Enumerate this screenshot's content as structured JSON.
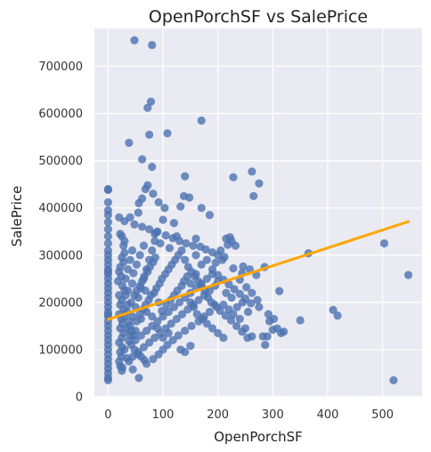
{
  "chart_data": {
    "type": "scatter",
    "title": "OpenPorchSF vs SalePrice",
    "xlabel": "OpenPorchSF",
    "ylabel": "SalePrice",
    "xlim": [
      -25,
      572
    ],
    "ylim": [
      0,
      780000
    ],
    "xticks": [
      0,
      100,
      200,
      300,
      400,
      500
    ],
    "yticks": [
      0,
      100000,
      200000,
      300000,
      400000,
      500000,
      600000,
      700000
    ],
    "grid": true,
    "point_color": "#4c72b0",
    "line_color": "#ffa500",
    "background_color": "#eaeaf2",
    "regression_line": {
      "x": [
        0,
        547
      ],
      "y": [
        164000,
        371000
      ]
    },
    "points": [
      [
        0,
        440000
      ],
      [
        0,
        438000
      ],
      [
        0,
        395000
      ],
      [
        0,
        385000
      ],
      [
        0,
        370000
      ],
      [
        0,
        355000
      ],
      [
        0,
        340000
      ],
      [
        0,
        325000
      ],
      [
        0,
        310000
      ],
      [
        0,
        300000
      ],
      [
        0,
        290000
      ],
      [
        0,
        280000
      ],
      [
        0,
        270000
      ],
      [
        0,
        260000
      ],
      [
        0,
        250000
      ],
      [
        0,
        240000
      ],
      [
        0,
        230000
      ],
      [
        0,
        220000
      ],
      [
        0,
        210000
      ],
      [
        0,
        200000
      ],
      [
        0,
        190000
      ],
      [
        0,
        180000
      ],
      [
        0,
        170000
      ],
      [
        0,
        160000
      ],
      [
        0,
        150000
      ],
      [
        0,
        140000
      ],
      [
        0,
        130000
      ],
      [
        0,
        120000
      ],
      [
        0,
        110000
      ],
      [
        0,
        100000
      ],
      [
        0,
        90000
      ],
      [
        0,
        80000
      ],
      [
        0,
        70000
      ],
      [
        0,
        60000
      ],
      [
        0,
        50000
      ],
      [
        0,
        40000
      ],
      [
        0,
        35000
      ],
      [
        0,
        412000
      ],
      [
        0,
        265000
      ],
      [
        0,
        175000
      ],
      [
        20,
        380000
      ],
      [
        22,
        345000
      ],
      [
        25,
        340000
      ],
      [
        30,
        330000
      ],
      [
        30,
        305000
      ],
      [
        25,
        295000
      ],
      [
        28,
        285000
      ],
      [
        22,
        275000
      ],
      [
        20,
        265000
      ],
      [
        24,
        255000
      ],
      [
        18,
        245000
      ],
      [
        26,
        235000
      ],
      [
        30,
        225000
      ],
      [
        20,
        215000
      ],
      [
        25,
        205000
      ],
      [
        22,
        195000
      ],
      [
        28,
        185000
      ],
      [
        20,
        175000
      ],
      [
        24,
        165000
      ],
      [
        26,
        155000
      ],
      [
        22,
        145000
      ],
      [
        28,
        135000
      ],
      [
        25,
        125000
      ],
      [
        20,
        115000
      ],
      [
        26,
        105000
      ],
      [
        22,
        95000
      ],
      [
        24,
        85000
      ],
      [
        20,
        75000
      ],
      [
        22,
        65000
      ],
      [
        25,
        55000
      ],
      [
        48,
        755000
      ],
      [
        80,
        745000
      ],
      [
        78,
        625000
      ],
      [
        72,
        612000
      ],
      [
        170,
        585000
      ],
      [
        108,
        558000
      ],
      [
        75,
        555000
      ],
      [
        38,
        538000
      ],
      [
        62,
        503000
      ],
      [
        80,
        487000
      ],
      [
        140,
        467000
      ],
      [
        228,
        465000
      ],
      [
        262,
        477000
      ],
      [
        275,
        452000
      ],
      [
        265,
        425000
      ],
      [
        72,
        448000
      ],
      [
        68,
        440000
      ],
      [
        82,
        430000
      ],
      [
        62,
        420000
      ],
      [
        56,
        410000
      ],
      [
        92,
        412000
      ],
      [
        138,
        425000
      ],
      [
        148,
        422000
      ],
      [
        103,
        400000
      ],
      [
        132,
        403000
      ],
      [
        170,
        400000
      ],
      [
        185,
        385000
      ],
      [
        100,
        375000
      ],
      [
        120,
        368000
      ],
      [
        55,
        390000
      ],
      [
        40,
        380000
      ],
      [
        30,
        372000
      ],
      [
        48,
        365000
      ],
      [
        62,
        360000
      ],
      [
        75,
        355000
      ],
      [
        88,
        348000
      ],
      [
        105,
        342000
      ],
      [
        118,
        336000
      ],
      [
        130,
        330000
      ],
      [
        142,
        325000
      ],
      [
        155,
        320000
      ],
      [
        168,
        318000
      ],
      [
        178,
        312000
      ],
      [
        190,
        306000
      ],
      [
        200,
        300000
      ],
      [
        212,
        296000
      ],
      [
        222,
        338000
      ],
      [
        218,
        322000
      ],
      [
        208,
        290000
      ],
      [
        196,
        284000
      ],
      [
        232,
        320000
      ],
      [
        228,
        272000
      ],
      [
        244,
        262000
      ],
      [
        246,
        276000
      ],
      [
        258,
        270000
      ],
      [
        270,
        258000
      ],
      [
        285,
        275000
      ],
      [
        240,
        248000
      ],
      [
        252,
        232000
      ],
      [
        262,
        220000
      ],
      [
        272,
        205000
      ],
      [
        292,
        175000
      ],
      [
        294,
        160000
      ],
      [
        302,
        165000
      ],
      [
        308,
        145000
      ],
      [
        315,
        135000
      ],
      [
        282,
        128000
      ],
      [
        286,
        110000
      ],
      [
        262,
        128000
      ],
      [
        250,
        145000
      ],
      [
        240,
        165000
      ],
      [
        228,
        175000
      ],
      [
        220,
        185000
      ],
      [
        210,
        195000
      ],
      [
        198,
        190000
      ],
      [
        185,
        180000
      ],
      [
        175,
        170000
      ],
      [
        165,
        160000
      ],
      [
        152,
        150000
      ],
      [
        140,
        140000
      ],
      [
        128,
        130000
      ],
      [
        118,
        120000
      ],
      [
        108,
        110000
      ],
      [
        100,
        100000
      ],
      [
        92,
        90000
      ],
      [
        82,
        80000
      ],
      [
        70,
        70000
      ],
      [
        56,
        40000
      ],
      [
        45,
        58000
      ],
      [
        38,
        118000
      ],
      [
        50,
        120000
      ],
      [
        60,
        130000
      ],
      [
        70,
        140000
      ],
      [
        80,
        150000
      ],
      [
        90,
        160000
      ],
      [
        100,
        170000
      ],
      [
        110,
        180000
      ],
      [
        120,
        190000
      ],
      [
        130,
        200000
      ],
      [
        140,
        210000
      ],
      [
        150,
        220000
      ],
      [
        160,
        230000
      ],
      [
        170,
        240000
      ],
      [
        180,
        250000
      ],
      [
        190,
        260000
      ],
      [
        200,
        245000
      ],
      [
        195,
        235000
      ],
      [
        185,
        225000
      ],
      [
        175,
        215000
      ],
      [
        165,
        205000
      ],
      [
        155,
        195000
      ],
      [
        145,
        185000
      ],
      [
        135,
        175000
      ],
      [
        125,
        165000
      ],
      [
        115,
        155000
      ],
      [
        105,
        145000
      ],
      [
        95,
        135000
      ],
      [
        85,
        125000
      ],
      [
        75,
        115000
      ],
      [
        65,
        105000
      ],
      [
        55,
        95000
      ],
      [
        45,
        85000
      ],
      [
        40,
        150000
      ],
      [
        45,
        170000
      ],
      [
        50,
        190000
      ],
      [
        55,
        210000
      ],
      [
        60,
        230000
      ],
      [
        65,
        250000
      ],
      [
        70,
        270000
      ],
      [
        75,
        290000
      ],
      [
        80,
        310000
      ],
      [
        85,
        330000
      ],
      [
        90,
        350000
      ],
      [
        42,
        200000
      ],
      [
        48,
        215000
      ],
      [
        52,
        225000
      ],
      [
        58,
        235000
      ],
      [
        62,
        245000
      ],
      [
        66,
        255000
      ],
      [
        72,
        265000
      ],
      [
        76,
        275000
      ],
      [
        82,
        285000
      ],
      [
        86,
        295000
      ],
      [
        35,
        180000
      ],
      [
        38,
        160000
      ],
      [
        42,
        140000
      ],
      [
        46,
        130000
      ],
      [
        52,
        160000
      ],
      [
        58,
        175000
      ],
      [
        64,
        185000
      ],
      [
        68,
        195000
      ],
      [
        74,
        205000
      ],
      [
        78,
        215000
      ],
      [
        84,
        220000
      ],
      [
        88,
        230000
      ],
      [
        94,
        240000
      ],
      [
        98,
        250000
      ],
      [
        104,
        260000
      ],
      [
        110,
        270000
      ],
      [
        116,
        280000
      ],
      [
        122,
        290000
      ],
      [
        128,
        300000
      ],
      [
        134,
        310000
      ],
      [
        146,
        275000
      ],
      [
        152,
        265000
      ],
      [
        158,
        255000
      ],
      [
        164,
        245000
      ],
      [
        170,
        235000
      ],
      [
        176,
        225000
      ],
      [
        182,
        210000
      ],
      [
        188,
        200000
      ],
      [
        194,
        195000
      ],
      [
        204,
        182000
      ],
      [
        214,
        172000
      ],
      [
        224,
        162000
      ],
      [
        234,
        150000
      ],
      [
        244,
        138000
      ],
      [
        254,
        125000
      ],
      [
        32,
        250000
      ],
      [
        36,
        270000
      ],
      [
        40,
        290000
      ],
      [
        44,
        310000
      ],
      [
        28,
        320000
      ],
      [
        32,
        215000
      ],
      [
        36,
        195000
      ],
      [
        30,
        170000
      ],
      [
        34,
        145000
      ],
      [
        42,
        110000
      ],
      [
        48,
        100000
      ],
      [
        54,
        90000
      ],
      [
        60,
        85000
      ],
      [
        66,
        78000
      ],
      [
        30,
        100000
      ],
      [
        34,
        82000
      ],
      [
        38,
        75000
      ],
      [
        26,
        62000
      ],
      [
        365,
        304000
      ],
      [
        312,
        224000
      ],
      [
        350,
        162000
      ],
      [
        410,
        184000
      ],
      [
        418,
        172000
      ],
      [
        503,
        325000
      ],
      [
        547,
        258000
      ],
      [
        520,
        35000
      ],
      [
        290,
        128000
      ],
      [
        300,
        142000
      ],
      [
        320,
        138000
      ],
      [
        205,
        310000
      ],
      [
        215,
        335000
      ],
      [
        225,
        330000
      ],
      [
        160,
        335000
      ],
      [
        125,
        340000
      ],
      [
        112,
        315000
      ],
      [
        95,
        325000
      ],
      [
        85,
        345000
      ],
      [
        65,
        320000
      ],
      [
        58,
        300000
      ],
      [
        52,
        280000
      ],
      [
        46,
        262000
      ],
      [
        68,
        225000
      ],
      [
        44,
        240000
      ],
      [
        92,
        200000
      ],
      [
        98,
        182000
      ],
      [
        106,
        195000
      ],
      [
        114,
        205000
      ],
      [
        120,
        215000
      ],
      [
        126,
        225000
      ],
      [
        134,
        235000
      ],
      [
        138,
        245000
      ],
      [
        144,
        255000
      ],
      [
        150,
        200000
      ],
      [
        156,
        190000
      ],
      [
        162,
        175000
      ],
      [
        172,
        165000
      ],
      [
        180,
        155000
      ],
      [
        190,
        145000
      ],
      [
        200,
        135000
      ],
      [
        210,
        125000
      ],
      [
        150,
        108000
      ],
      [
        140,
        95000
      ],
      [
        132,
        100000
      ],
      [
        100,
        125000
      ],
      [
        110,
        135000
      ],
      [
        90,
        145000
      ],
      [
        80,
        170000
      ],
      [
        70,
        180000
      ],
      [
        60,
        165000
      ],
      [
        50,
        140000
      ],
      [
        40,
        130000
      ],
      [
        36,
        225000
      ],
      [
        150,
        240000
      ],
      [
        160,
        260000
      ],
      [
        170,
        280000
      ],
      [
        180,
        290000
      ],
      [
        190,
        270000
      ],
      [
        200,
        258000
      ],
      [
        210,
        248000
      ],
      [
        220,
        238000
      ],
      [
        230,
        228000
      ],
      [
        240,
        218000
      ],
      [
        250,
        208000
      ],
      [
        260,
        198000
      ],
      [
        275,
        190000
      ],
      [
        255,
        180000
      ],
      [
        245,
        200000
      ],
      [
        235,
        190000
      ],
      [
        225,
        210000
      ],
      [
        215,
        220000
      ],
      [
        160,
        300000
      ],
      [
        140,
        290000
      ]
    ]
  }
}
